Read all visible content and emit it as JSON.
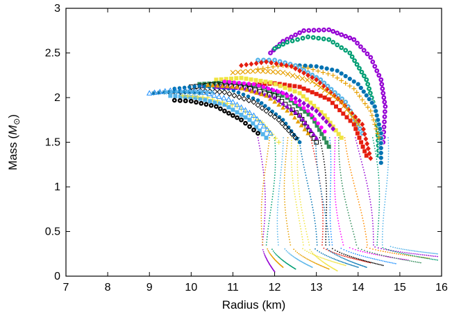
{
  "chart_data": {
    "type": "scatter",
    "title": "",
    "xlabel": "Radius (km)",
    "ylabel": "Mass (",
    "ylabel_symbol": "M",
    "ylabel_sub": "⊙",
    "ylabel_close": ")",
    "xlim": [
      7,
      16
    ],
    "ylim": [
      0,
      3
    ],
    "xticks": [
      "7",
      "8",
      "9",
      "10",
      "11",
      "12",
      "13",
      "14",
      "15",
      "16"
    ],
    "yticks": [
      "0",
      "0.5",
      "1",
      "1.5",
      "2",
      "2.5",
      "3"
    ],
    "grid": false,
    "legend": "none",
    "palette": [
      "#9400d3",
      "#009e73",
      "#56b4e9",
      "#e69f00",
      "#f0e442",
      "#0072b2",
      "#e51e10",
      "#000000",
      "#1e90ff",
      "#ff00ff",
      "#2e8b57",
      "#ff8c00"
    ],
    "series": [
      {
        "marker": "circle-dot",
        "color": "#9400d3",
        "points": [
          [
            14.6,
            1.5
          ],
          [
            14.65,
            1.9
          ],
          [
            14.55,
            2.2
          ],
          [
            14.3,
            2.45
          ],
          [
            13.9,
            2.65
          ],
          [
            13.3,
            2.76
          ],
          [
            12.7,
            2.75
          ],
          [
            12.2,
            2.63
          ],
          [
            11.9,
            2.5
          ]
        ]
      },
      {
        "marker": "circle-dot",
        "color": "#009e73",
        "points": [
          [
            14.5,
            1.35
          ],
          [
            14.45,
            1.8
          ],
          [
            14.2,
            2.2
          ],
          [
            13.8,
            2.5
          ],
          [
            13.3,
            2.65
          ],
          [
            12.8,
            2.68
          ],
          [
            12.3,
            2.62
          ],
          [
            12.0,
            2.55
          ]
        ]
      },
      {
        "marker": "circle",
        "color": "#0072b2",
        "points": [
          [
            14.55,
            1.27
          ],
          [
            14.55,
            1.6
          ],
          [
            14.4,
            1.9
          ],
          [
            14.0,
            2.15
          ],
          [
            13.5,
            2.3
          ],
          [
            13.0,
            2.35
          ],
          [
            12.6,
            2.36
          ]
        ]
      },
      {
        "marker": "plus",
        "color": "#e69f00",
        "points": [
          [
            14.5,
            1.55
          ],
          [
            14.3,
            1.85
          ],
          [
            13.9,
            2.1
          ],
          [
            13.4,
            2.25
          ],
          [
            12.8,
            2.33
          ],
          [
            12.2,
            2.36
          ],
          [
            11.6,
            2.32
          ]
        ]
      },
      {
        "marker": "circle-dot",
        "color": "#56b4e9",
        "points": [
          [
            14.1,
            1.6
          ],
          [
            13.7,
            1.95
          ],
          [
            13.1,
            2.2
          ],
          [
            12.5,
            2.36
          ],
          [
            12.0,
            2.42
          ],
          [
            11.6,
            2.42
          ]
        ]
      },
      {
        "marker": "filled-diamond",
        "color": "#e51e10",
        "points": [
          [
            14.3,
            1.32
          ],
          [
            14.1,
            1.7
          ],
          [
            13.6,
            1.95
          ],
          [
            13.0,
            2.2
          ],
          [
            12.4,
            2.35
          ],
          [
            11.8,
            2.4
          ],
          [
            11.2,
            2.36
          ]
        ]
      },
      {
        "marker": "filled-square",
        "color": "#e51e10",
        "points": [
          [
            14.2,
            1.35
          ],
          [
            13.9,
            1.7
          ],
          [
            13.3,
            1.98
          ],
          [
            12.6,
            2.12
          ],
          [
            12.0,
            2.16
          ],
          [
            11.4,
            2.14
          ]
        ]
      },
      {
        "marker": "x",
        "color": "#e69f00",
        "points": [
          [
            14.0,
            1.7
          ],
          [
            13.6,
            1.95
          ],
          [
            12.9,
            2.18
          ],
          [
            12.2,
            2.28
          ],
          [
            11.6,
            2.3
          ],
          [
            11.0,
            2.28
          ]
        ]
      },
      {
        "marker": "filled-square",
        "color": "#f0e442",
        "points": [
          [
            13.6,
            1.55
          ],
          [
            13.2,
            1.8
          ],
          [
            12.6,
            2.05
          ],
          [
            11.9,
            2.17
          ],
          [
            11.2,
            2.22
          ],
          [
            10.6,
            2.2
          ]
        ]
      },
      {
        "marker": "filled-diamond",
        "color": "#9400d3",
        "points": [
          [
            13.4,
            1.65
          ],
          [
            13.0,
            1.85
          ],
          [
            12.4,
            2.02
          ],
          [
            11.7,
            2.12
          ],
          [
            11.0,
            2.15
          ],
          [
            10.3,
            2.13
          ]
        ]
      },
      {
        "marker": "filled-square",
        "color": "#2e8b57",
        "points": [
          [
            13.3,
            1.45
          ],
          [
            12.9,
            1.78
          ],
          [
            12.3,
            2.0
          ],
          [
            11.6,
            2.13
          ],
          [
            10.9,
            2.17
          ],
          [
            10.2,
            2.15
          ]
        ]
      },
      {
        "marker": "square",
        "color": "#000000",
        "points": [
          [
            13.0,
            1.5
          ],
          [
            12.6,
            1.8
          ],
          [
            12.0,
            2.02
          ],
          [
            11.3,
            2.12
          ],
          [
            10.6,
            2.15
          ],
          [
            10.0,
            2.12
          ]
        ]
      },
      {
        "marker": "filled-circle",
        "color": "#0072b2",
        "points": [
          [
            12.6,
            1.5
          ],
          [
            12.2,
            1.75
          ],
          [
            11.6,
            1.97
          ],
          [
            10.9,
            2.1
          ],
          [
            10.2,
            2.13
          ],
          [
            9.6,
            2.1
          ]
        ]
      },
      {
        "marker": "filled-triangle",
        "color": "#9400d3",
        "points": [
          [
            13.0,
            1.55
          ],
          [
            12.6,
            1.8
          ],
          [
            12.0,
            2.0
          ],
          [
            11.3,
            2.1
          ],
          [
            10.6,
            2.12
          ]
        ]
      },
      {
        "marker": "diamond",
        "color": "#000000",
        "points": [
          [
            12.5,
            1.55
          ],
          [
            12.1,
            1.75
          ],
          [
            11.5,
            1.95
          ],
          [
            10.8,
            2.06
          ],
          [
            10.1,
            2.08
          ],
          [
            9.5,
            2.05
          ]
        ]
      },
      {
        "marker": "filled-square",
        "color": "#56b4e9",
        "points": [
          [
            11.8,
            1.55
          ],
          [
            11.4,
            1.75
          ],
          [
            10.8,
            1.92
          ],
          [
            10.1,
            2.0
          ],
          [
            9.5,
            2.02
          ]
        ]
      },
      {
        "marker": "plus",
        "color": "#f0e442",
        "points": [
          [
            12.1,
            1.5
          ],
          [
            11.7,
            1.72
          ],
          [
            11.1,
            1.9
          ],
          [
            10.4,
            2.0
          ],
          [
            9.8,
            2.02
          ]
        ]
      },
      {
        "marker": "triangle",
        "color": "#1e90ff",
        "points": [
          [
            11.9,
            1.6
          ],
          [
            11.5,
            1.8
          ],
          [
            10.9,
            1.98
          ],
          [
            10.2,
            2.07
          ],
          [
            9.5,
            2.08
          ],
          [
            9.0,
            2.05
          ]
        ]
      },
      {
        "marker": "circle-dot",
        "color": "#000000",
        "points": [
          [
            11.6,
            1.6
          ],
          [
            11.2,
            1.75
          ],
          [
            10.6,
            1.9
          ],
          [
            10.0,
            1.96
          ],
          [
            9.6,
            1.97
          ]
        ]
      },
      {
        "marker": "asterisk",
        "color": "#0072b2",
        "points": [
          [
            10.2,
            2.05
          ],
          [
            9.6,
            2.07
          ],
          [
            9.1,
            2.05
          ]
        ]
      },
      {
        "marker": "star",
        "color": "#56b4e9",
        "points": [
          [
            10.5,
            2.06
          ],
          [
            9.9,
            2.07
          ],
          [
            9.4,
            2.06
          ]
        ]
      },
      {
        "marker": "filled-triangle",
        "color": "#e69f00",
        "points": [
          [
            12.8,
            1.6
          ],
          [
            12.4,
            1.82
          ],
          [
            11.8,
            2.02
          ],
          [
            11.1,
            2.12
          ],
          [
            10.4,
            2.14
          ]
        ]
      },
      {
        "marker": "filled-circle",
        "color": "#ff00ff",
        "points": [
          [
            13.2,
            1.62
          ],
          [
            12.8,
            1.85
          ],
          [
            12.2,
            2.05
          ],
          [
            11.5,
            2.15
          ],
          [
            10.8,
            2.18
          ]
        ]
      }
    ],
    "low_mass_tails": {
      "marker": "dot",
      "start_radius": [
        11.6,
        11.9,
        12.1,
        12.3,
        12.5,
        12.7,
        12.9,
        13.0,
        13.2,
        13.4,
        13.6,
        13.8,
        14.0,
        14.3,
        14.6,
        11.8,
        12.6,
        13.1
      ],
      "turn_radius": [
        11.7,
        11.9,
        12.2,
        12.4,
        12.6,
        12.9,
        13.1,
        13.3,
        13.5,
        13.7,
        13.9,
        14.1,
        14.3,
        14.5,
        14.7,
        11.8,
        12.8,
        13.2
      ],
      "end_radius": [
        12.0,
        12.5,
        12.9,
        13.3,
        13.7,
        14.0,
        14.3,
        14.6,
        14.9,
        15.2,
        15.5,
        15.7,
        15.9,
        15.9,
        15.9,
        12.2,
        13.5,
        14.2
      ],
      "end_mass": [
        0.05,
        0.08,
        0.1,
        0.08,
        0.12,
        0.1,
        0.15,
        0.12,
        0.14,
        0.18,
        0.15,
        0.2,
        0.22,
        0.18,
        0.25,
        0.1,
        0.06,
        0.1
      ]
    }
  }
}
